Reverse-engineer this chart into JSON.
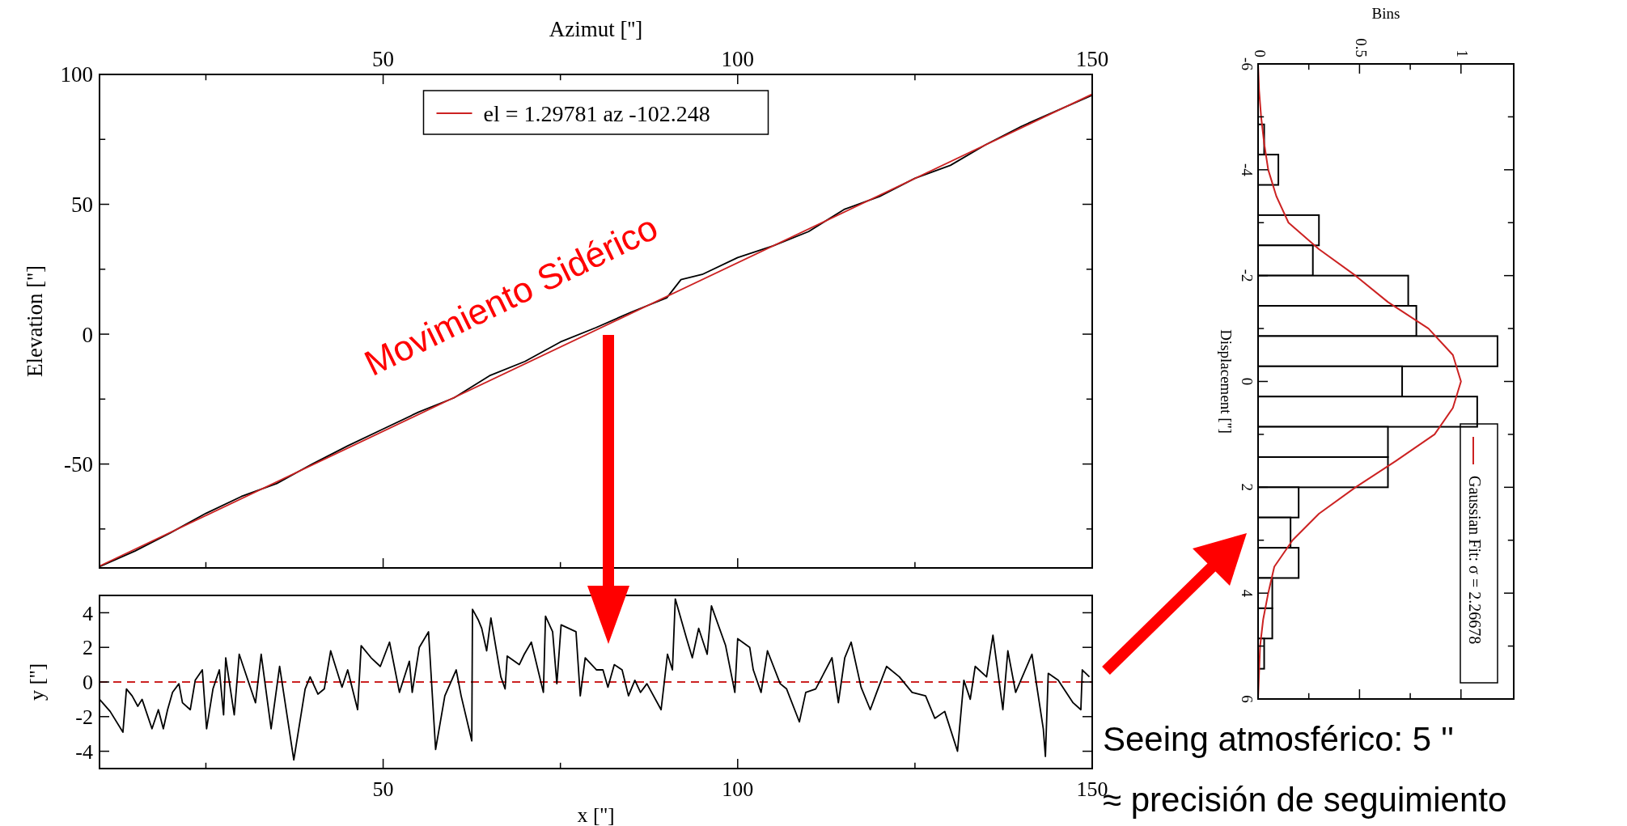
{
  "chart_data": [
    {
      "type": "line",
      "xlabel": "Azimut ['']",
      "ylabel": "Elevation ['']",
      "xlim": [
        10,
        150
      ],
      "xticks": [
        {
          "value": 25,
          "label": null
        },
        50,
        {
          "value": 75,
          "label": null
        },
        100,
        {
          "value": 125,
          "label": null
        },
        150
      ],
      "ylim": [
        -90,
        100
      ],
      "yticks": [
        {
          "value": -75,
          "label": null
        },
        -50,
        {
          "value": -25,
          "label": null
        },
        0,
        {
          "value": 25,
          "label": null
        },
        50,
        {
          "value": 75,
          "label": null
        },
        100
      ],
      "legend": "top",
      "annotations": [
        "Movimiento Sidérico"
      ],
      "series": [
        {
          "color": "#000000",
          "x": [
            10,
            15,
            20,
            25,
            30,
            35,
            40,
            45,
            50,
            55,
            60,
            65,
            70,
            75,
            80,
            85,
            90,
            92,
            95,
            100,
            105,
            110,
            115,
            120,
            125,
            130,
            135,
            140,
            145,
            150
          ],
          "values": [
            -89.5,
            -83.5,
            -76.5,
            -69,
            -62.5,
            -57.5,
            -50,
            -43,
            -36.5,
            -30,
            -24.5,
            -16,
            -10.5,
            -3,
            2.5,
            8.5,
            14,
            21,
            23,
            29.5,
            34,
            39.5,
            48,
            53,
            60,
            65,
            73,
            80,
            86,
            92
          ]
        },
        {
          "name": "el = 1.29781 az -102.248",
          "color": "#cc2222",
          "x": [
            10,
            150
          ],
          "values": [
            -89.3,
            92.4
          ]
        }
      ]
    },
    {
      "type": "line",
      "xlabel": "x ['']",
      "ylabel": "y ['']",
      "xlim": [
        10,
        150
      ],
      "xticks": [
        {
          "value": 25,
          "label": null
        },
        50,
        {
          "value": 75,
          "label": null
        },
        100,
        {
          "value": 125,
          "label": null
        },
        150
      ],
      "ylim": [
        -5,
        5
      ],
      "yticks": [
        -4,
        -2,
        0,
        2,
        4
      ],
      "ref_lines": [
        {
          "axis": "y",
          "value": 0,
          "color": "#cc2222",
          "line_style": "dashed"
        }
      ],
      "series": [
        {
          "color": "#000000",
          "x": [
            10,
            11.5,
            13.3,
            13.8,
            14.6,
            15.4,
            16,
            17.4,
            18.3,
            19,
            19.6,
            20.3,
            21.2,
            21.7,
            22.8,
            23.5,
            24.5,
            25.1,
            26,
            26.9,
            27.5,
            27.8,
            29,
            29.7,
            32,
            32.8,
            34.2,
            35.4,
            37.4,
            39,
            39.7,
            40.8,
            41.7,
            42.6,
            44.2,
            45,
            46.4,
            46.9,
            48.3,
            49.6,
            50.9,
            52.3,
            53.7,
            54.1,
            55.1,
            56.4,
            57.4,
            58.7,
            60.3,
            61,
            62.5,
            62.6,
            63.4,
            63.9,
            64.6,
            65.2,
            66.6,
            67.2,
            67.5,
            69.2,
            69.9,
            70.9,
            72.6,
            72.9,
            73.9,
            74.5,
            75.1,
            77.2,
            77.8,
            78.5,
            80.1,
            81,
            81.7,
            82.6,
            83.7,
            84.6,
            85.5,
            86.3,
            87.2,
            89.2,
            90.1,
            90.8,
            91.2,
            92.8,
            93.6,
            94.5,
            95.7,
            96.3,
            98.3,
            99.6,
            100,
            101.7,
            102.2,
            103.3,
            104.2,
            106,
            106.9,
            108.7,
            109.6,
            111,
            113.3,
            114.2,
            115.1,
            116,
            117.4,
            118.7,
            119.6,
            121,
            122.8,
            124.6,
            126.5,
            127.8,
            129.2,
            131,
            131.9,
            132.8,
            133.5,
            135.1,
            136,
            137.4,
            138.1,
            139.2,
            141.5,
            143.1,
            143.4,
            143.8,
            145.2,
            147.3,
            148.4,
            148.6,
            149.6
          ],
          "values": [
            -1.0,
            -1.7,
            -2.9,
            -0.4,
            -0.8,
            -1.4,
            -1.0,
            -2.7,
            -1.6,
            -2.7,
            -1.6,
            -0.6,
            -0.1,
            -1.2,
            -1.6,
            0.1,
            0.7,
            -2.7,
            -0.4,
            0.7,
            -1.9,
            1.4,
            -1.9,
            1.6,
            -1.2,
            1.6,
            -2.7,
            0.9,
            -4.5,
            -0.4,
            0.3,
            -0.7,
            -0.4,
            1.8,
            -0.3,
            0.7,
            -1.6,
            2.1,
            1.4,
            0.9,
            2.3,
            -0.6,
            1.2,
            -0.6,
            2.0,
            2.9,
            -3.9,
            -0.8,
            0.7,
            -0.8,
            -3.4,
            4.2,
            3.6,
            3.1,
            1.8,
            3.7,
            0.3,
            -0.4,
            1.5,
            1.0,
            1.6,
            2.3,
            -0.6,
            3.8,
            2.9,
            -0.1,
            3.3,
            2.9,
            -0.8,
            1.4,
            0.7,
            0.7,
            -0.3,
            1.0,
            0.7,
            -0.8,
            0.1,
            -0.6,
            -0.1,
            -1.6,
            1.6,
            0.7,
            4.8,
            2.5,
            1.4,
            3.1,
            1.6,
            4.4,
            2.1,
            -0.6,
            2.5,
            2.0,
            0.7,
            -0.6,
            1.8,
            -0.1,
            -0.4,
            -2.3,
            -0.6,
            -0.4,
            1.4,
            -1.2,
            1.4,
            2.3,
            -0.3,
            -1.6,
            -0.6,
            0.9,
            0.3,
            -0.6,
            -0.8,
            -2.1,
            -1.7,
            -4.0,
            0.1,
            -1.0,
            0.9,
            0.3,
            2.7,
            -1.6,
            1.8,
            -0.6,
            1.6,
            -2.7,
            -4.3,
            0.5,
            0.1,
            -1.2,
            -1.6,
            0.7,
            0.3
          ]
        }
      ]
    },
    {
      "type": "histogram",
      "orientation": "horizontal",
      "ylabel": "Displacement ['']",
      "xlabel": "Bins",
      "ylim": [
        6,
        -6
      ],
      "yticks": [
        -6,
        {
          "value": -5,
          "label": null
        },
        -4,
        {
          "value": -3,
          "label": null
        },
        -2,
        {
          "value": -1,
          "label": null
        },
        0,
        {
          "value": 1,
          "label": null
        },
        2,
        {
          "value": 3,
          "label": null
        },
        4,
        {
          "value": 5,
          "label": null
        },
        6
      ],
      "xlim": [
        0,
        1.26
      ],
      "xticks": [
        0,
        {
          "value": 0.25,
          "label": null
        },
        0.5,
        {
          "value": 0.75,
          "label": null
        },
        1
      ],
      "legend": "bottom right",
      "annotations": [
        "Seeing atmosférico: 5 ''",
        "≈ precisión de seguimiento"
      ],
      "bins": [
        -4.857,
        -4.286,
        -3.714,
        -3.143,
        -2.571,
        -2,
        -1.429,
        -0.857,
        -0.286,
        0.286,
        0.857,
        1.429,
        2,
        2.571,
        3.143,
        3.714,
        4.286,
        4.857,
        5.429
      ],
      "series": [
        {
          "color": "#000000",
          "values": [
            0.03,
            0.1,
            0,
            0.3,
            0.27,
            0.74,
            0.78,
            1.18,
            0.71,
            1.08,
            0.64,
            0.64,
            0.2,
            0.16,
            0.2,
            0.07,
            0.07,
            0.03
          ]
        },
        {
          "type": "line",
          "name": "Gaussian Fit: σ = 2.26678",
          "color": "#cc2222",
          "x": [
            -6,
            -5.5,
            -5,
            -4.5,
            -4,
            -3.5,
            -3,
            -2.5,
            -2,
            -1.5,
            -1,
            -0.5,
            0,
            0.5,
            1,
            1.5,
            2,
            2.5,
            3,
            3.5,
            4,
            4.5,
            5,
            5.5,
            6
          ],
          "values": [
            0,
            0.005,
            0.015,
            0.03,
            0.05,
            0.09,
            0.15,
            0.3,
            0.48,
            0.64,
            0.84,
            0.96,
            1,
            0.96,
            0.87,
            0.68,
            0.48,
            0.3,
            0.17,
            0.08,
            0.05,
            0.025,
            0.01,
            0.005,
            0
          ]
        }
      ]
    }
  ]
}
